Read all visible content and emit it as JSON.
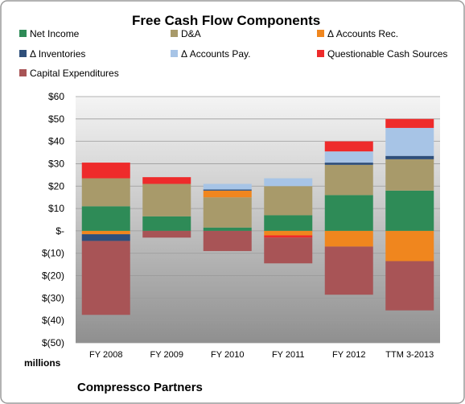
{
  "chart_data": {
    "type": "bar",
    "stacked": true,
    "title": "Free Cash Flow Components",
    "unit_label": "millions",
    "company": "Compressco Partners",
    "categories": [
      "FY 2008",
      "FY 2009",
      "FY 2010",
      "FY 2011",
      "FY 2012",
      "TTM 3-2013"
    ],
    "ylim": [
      -50,
      60
    ],
    "yticks": [
      60,
      50,
      40,
      30,
      20,
      10,
      0,
      -10,
      -20,
      -30,
      -40,
      -50
    ],
    "ytick_labels": [
      "$60",
      "$50",
      "$40",
      "$30",
      "$20",
      "$10",
      "$-",
      "$(10)",
      "$(20)",
      "$(30)",
      "$(40)",
      "$(50)"
    ],
    "grid": true,
    "legend_position": "top",
    "series": [
      {
        "name": "Net Income",
        "color": "#2e8b57",
        "values": [
          11,
          6.5,
          1.5,
          7,
          16,
          18
        ]
      },
      {
        "name": "D&A",
        "color": "#a89a6a",
        "values": [
          12.5,
          14.5,
          13.5,
          13,
          13.5,
          14
        ]
      },
      {
        "name": "Δ Accounts Rec.",
        "color": "#f0861e",
        "values": [
          -1.5,
          0,
          3,
          -2,
          -7,
          -13.5
        ]
      },
      {
        "name": "Δ Inventories",
        "color": "#2f4f7a",
        "values": [
          -3,
          0,
          0.5,
          0,
          1,
          1.5
        ]
      },
      {
        "name": "Δ Accounts Pay.",
        "color": "#a7c4e6",
        "values": [
          0,
          0,
          2.5,
          3.5,
          5,
          12.5
        ]
      },
      {
        "name": "Questionable Cash Sources",
        "color": "#ee2b2b",
        "values": [
          7,
          3,
          0,
          -1,
          4.5,
          4
        ]
      },
      {
        "name": "Capital Expenditures",
        "color": "#a85456",
        "values": [
          -33,
          -3,
          -9,
          -11.5,
          -21.5,
          -22
        ]
      }
    ]
  }
}
